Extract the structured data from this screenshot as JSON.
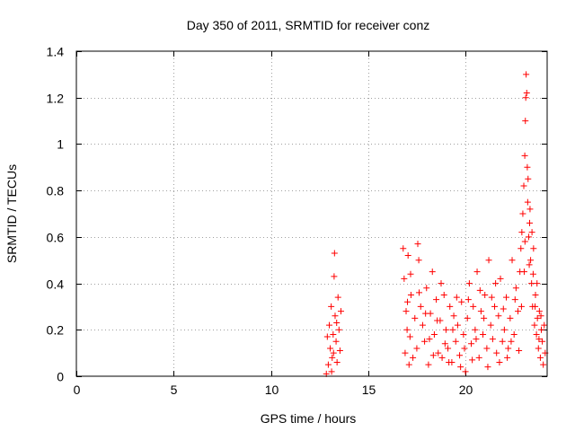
{
  "chart_data": {
    "type": "scatter",
    "title": "Day 350 of 2011, SRMTID for receiver conz",
    "xlabel": "GPS time / hours",
    "ylabel": "SRMTID / TECUs",
    "xlim": [
      0,
      24.2
    ],
    "ylim": [
      0,
      1.4
    ],
    "grid": true,
    "marker": "+",
    "marker_color": "#ff0000",
    "xticks": [
      0,
      5,
      10,
      15,
      20
    ],
    "xtick_labels": [
      "0",
      "5",
      "10",
      "15",
      "20"
    ],
    "yticks": [
      0,
      0.2,
      0.4,
      0.6,
      0.8,
      1.0,
      1.2,
      1.4
    ],
    "ytick_labels": [
      "0",
      "0.2",
      "0.4",
      "0.6",
      "0.8",
      "1",
      "1.2",
      "1.4"
    ],
    "series": [
      {
        "name": "SRMTID",
        "points": [
          [
            12.85,
            0.01
          ],
          [
            12.9,
            0.17
          ],
          [
            12.95,
            0.05
          ],
          [
            13.0,
            0.22
          ],
          [
            13.05,
            0.12
          ],
          [
            13.1,
            0.3
          ],
          [
            13.15,
            0.08
          ],
          [
            13.2,
            0.18
          ],
          [
            13.25,
            0.43
          ],
          [
            13.27,
            0.53
          ],
          [
            13.3,
            0.26
          ],
          [
            13.35,
            0.15
          ],
          [
            13.4,
            0.06
          ],
          [
            13.45,
            0.34
          ],
          [
            13.5,
            0.2
          ],
          [
            13.55,
            0.11
          ],
          [
            13.6,
            0.28
          ],
          [
            13.12,
            0.02
          ],
          [
            13.22,
            0.1
          ],
          [
            13.38,
            0.23
          ],
          [
            16.8,
            0.55
          ],
          [
            16.85,
            0.42
          ],
          [
            16.9,
            0.1
          ],
          [
            16.95,
            0.28
          ],
          [
            17.0,
            0.2
          ],
          [
            17.05,
            0.52
          ],
          [
            17.1,
            0.05
          ],
          [
            17.15,
            0.17
          ],
          [
            17.2,
            0.35
          ],
          [
            17.3,
            0.08
          ],
          [
            17.4,
            0.25
          ],
          [
            17.5,
            0.12
          ],
          [
            17.55,
            0.57
          ],
          [
            17.6,
            0.5
          ],
          [
            17.7,
            0.3
          ],
          [
            17.8,
            0.22
          ],
          [
            17.9,
            0.15
          ],
          [
            18.0,
            0.38
          ],
          [
            18.1,
            0.05
          ],
          [
            18.2,
            0.27
          ],
          [
            18.3,
            0.45
          ],
          [
            18.4,
            0.18
          ],
          [
            18.5,
            0.33
          ],
          [
            18.6,
            0.1
          ],
          [
            18.7,
            0.24
          ],
          [
            18.8,
            0.08
          ],
          [
            18.9,
            0.35
          ],
          [
            19.0,
            0.2
          ],
          [
            19.1,
            0.12
          ],
          [
            19.2,
            0.3
          ],
          [
            19.3,
            0.06
          ],
          [
            19.4,
            0.26
          ],
          [
            19.5,
            0.15
          ],
          [
            19.6,
            0.22
          ],
          [
            19.7,
            0.09
          ],
          [
            19.8,
            0.32
          ],
          [
            19.9,
            0.18
          ],
          [
            20.0,
            0.02
          ],
          [
            20.1,
            0.25
          ],
          [
            20.2,
            0.4
          ],
          [
            20.3,
            0.14
          ],
          [
            20.4,
            0.3
          ],
          [
            20.5,
            0.2
          ],
          [
            20.6,
            0.45
          ],
          [
            20.7,
            0.08
          ],
          [
            20.8,
            0.28
          ],
          [
            20.9,
            0.18
          ],
          [
            21.0,
            0.35
          ],
          [
            21.1,
            0.12
          ],
          [
            21.2,
            0.5
          ],
          [
            21.3,
            0.22
          ],
          [
            21.4,
            0.16
          ],
          [
            21.5,
            0.3
          ],
          [
            21.6,
            0.1
          ],
          [
            21.7,
            0.26
          ],
          [
            21.8,
            0.42
          ],
          [
            21.9,
            0.15
          ],
          [
            22.0,
            0.2
          ],
          [
            22.1,
            0.34
          ],
          [
            22.2,
            0.12
          ],
          [
            22.3,
            0.25
          ],
          [
            22.4,
            0.5
          ],
          [
            22.5,
            0.18
          ],
          [
            22.6,
            0.38
          ],
          [
            22.7,
            0.28
          ],
          [
            22.8,
            0.45
          ],
          [
            22.85,
            0.55
          ],
          [
            22.9,
            0.62
          ],
          [
            22.95,
            0.7
          ],
          [
            23.0,
            0.82
          ],
          [
            23.05,
            0.95
          ],
          [
            23.08,
            1.1
          ],
          [
            23.1,
            1.2
          ],
          [
            23.12,
            1.3
          ],
          [
            23.15,
            1.22
          ],
          [
            23.18,
            0.9
          ],
          [
            23.2,
            0.75
          ],
          [
            23.25,
            0.6
          ],
          [
            23.3,
            0.66
          ],
          [
            23.35,
            0.5
          ],
          [
            23.4,
            0.4
          ],
          [
            23.45,
            0.3
          ],
          [
            23.5,
            0.55
          ],
          [
            23.55,
            0.22
          ],
          [
            23.6,
            0.35
          ],
          [
            23.65,
            0.18
          ],
          [
            23.7,
            0.25
          ],
          [
            23.75,
            0.12
          ],
          [
            23.8,
            0.28
          ],
          [
            23.85,
            0.08
          ],
          [
            23.9,
            0.2
          ],
          [
            23.95,
            0.15
          ],
          [
            24.0,
            0.05
          ],
          [
            24.05,
            0.22
          ],
          [
            24.1,
            0.1
          ],
          [
            17.02,
            0.32
          ],
          [
            17.18,
            0.44
          ],
          [
            17.62,
            0.36
          ],
          [
            17.95,
            0.27
          ],
          [
            18.15,
            0.16
          ],
          [
            18.35,
            0.09
          ],
          [
            18.55,
            0.24
          ],
          [
            18.75,
            0.4
          ],
          [
            18.95,
            0.14
          ],
          [
            19.15,
            0.06
          ],
          [
            19.35,
            0.2
          ],
          [
            19.55,
            0.34
          ],
          [
            19.75,
            0.04
          ],
          [
            19.95,
            0.12
          ],
          [
            20.15,
            0.33
          ],
          [
            20.35,
            0.07
          ],
          [
            20.55,
            0.16
          ],
          [
            20.75,
            0.37
          ],
          [
            20.95,
            0.25
          ],
          [
            21.15,
            0.04
          ],
          [
            21.35,
            0.34
          ],
          [
            21.55,
            0.4
          ],
          [
            21.75,
            0.06
          ],
          [
            21.95,
            0.29
          ],
          [
            22.15,
            0.08
          ],
          [
            22.35,
            0.15
          ],
          [
            22.55,
            0.33
          ],
          [
            22.75,
            0.11
          ],
          [
            22.88,
            0.3
          ],
          [
            23.02,
            0.45
          ],
          [
            23.06,
            0.58
          ],
          [
            23.22,
            0.85
          ],
          [
            23.28,
            0.48
          ],
          [
            23.32,
            0.72
          ],
          [
            23.42,
            0.62
          ],
          [
            23.48,
            0.44
          ],
          [
            23.58,
            0.3
          ],
          [
            23.68,
            0.4
          ],
          [
            23.78,
            0.16
          ],
          [
            23.88,
            0.26
          ]
        ]
      }
    ]
  }
}
